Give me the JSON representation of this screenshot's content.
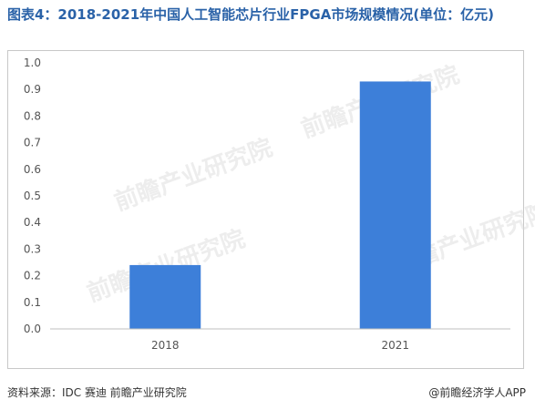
{
  "title": "图表4：2018-2021年中国人工智能芯片行业FPGA市场规模情况(单位：亿元)",
  "source": "资料来源：IDC 赛迪 前瞻产业研究院",
  "credit": "@前瞻经济学人APP",
  "watermark": "前瞻产业研究院",
  "chart_data": {
    "type": "bar",
    "title": "图表4：2018-2021年中国人工智能芯片行业FPGA市场规模情况(单位：亿元)",
    "categories": [
      "2018",
      "2021"
    ],
    "values": [
      0.24,
      0.93
    ],
    "ylim": [
      0,
      1.0
    ],
    "yticks": [
      "0.0",
      "0.1",
      "0.2",
      "0.3",
      "0.4",
      "0.5",
      "0.6",
      "0.7",
      "0.8",
      "0.9",
      "1.0"
    ],
    "xlabel": "",
    "ylabel": "",
    "grid": false,
    "bar_color": "#3d7fd9"
  }
}
